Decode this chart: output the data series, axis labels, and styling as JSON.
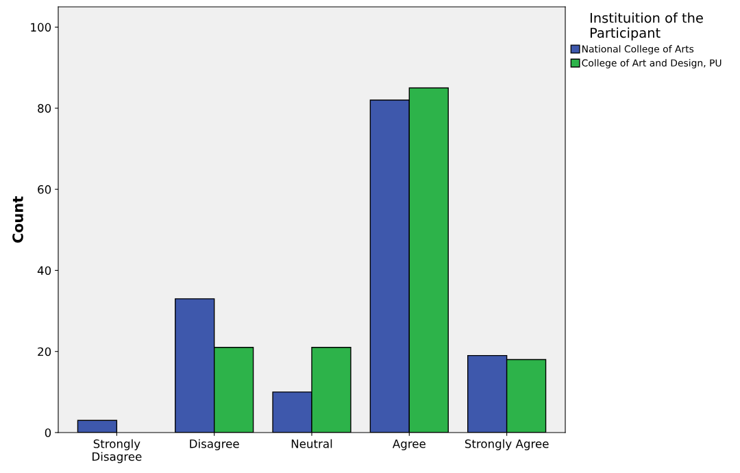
{
  "chart_data": {
    "type": "bar",
    "ylabel": "Count",
    "legend_title": "Instituition of the\nParticipant",
    "categories": [
      "Strongly\nDisagree",
      "Disagree",
      "Neutral",
      "Agree",
      "Strongly Agree"
    ],
    "series": [
      {
        "name": "National College of Arts",
        "color": "#3e58ac",
        "values": [
          3,
          33,
          10,
          82,
          19
        ]
      },
      {
        "name": "College of Art and Design, PU",
        "color": "#2db34a",
        "values": [
          null,
          21,
          21,
          85,
          18
        ]
      }
    ],
    "ylim": [
      0,
      105
    ],
    "yticks": [
      0,
      20,
      40,
      60,
      80,
      100
    ],
    "grid": false,
    "legend": "top right"
  }
}
